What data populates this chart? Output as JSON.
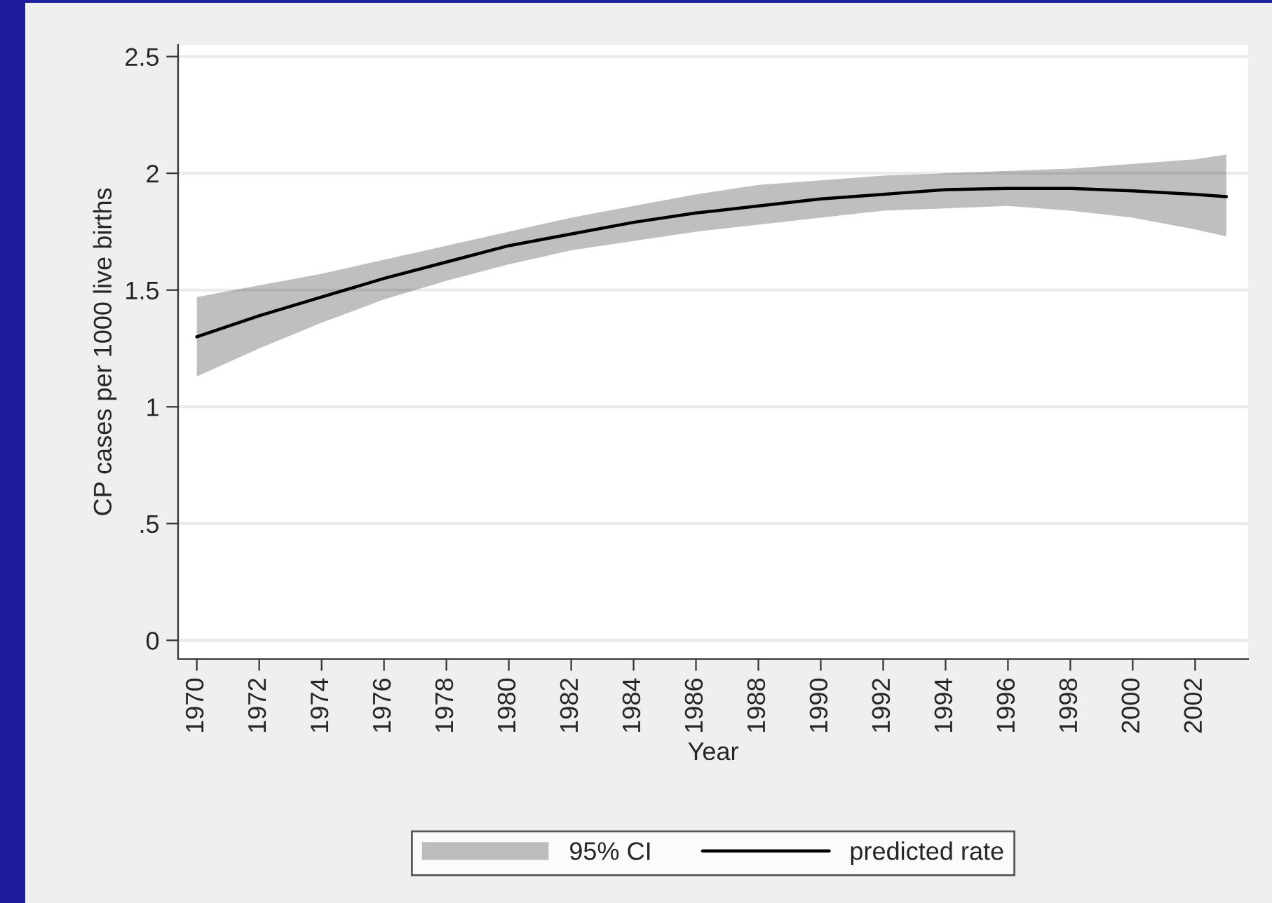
{
  "chart_data": {
    "type": "line",
    "xlabel": "Year",
    "ylabel": "CP cases per 1000 live births",
    "x": [
      1970,
      1972,
      1974,
      1976,
      1978,
      1980,
      1982,
      1984,
      1986,
      1988,
      1990,
      1992,
      1994,
      1996,
      1998,
      2000,
      2002,
      2003
    ],
    "series": [
      {
        "name": "predicted rate",
        "color": "#000000",
        "values": [
          1.3,
          1.39,
          1.47,
          1.55,
          1.62,
          1.69,
          1.74,
          1.79,
          1.83,
          1.86,
          1.89,
          1.91,
          1.93,
          1.935,
          1.935,
          1.925,
          1.91,
          1.9
        ],
        "upper": [
          1.47,
          1.52,
          1.57,
          1.63,
          1.69,
          1.75,
          1.81,
          1.86,
          1.91,
          1.95,
          1.97,
          1.99,
          2.0,
          2.01,
          2.02,
          2.04,
          2.06,
          2.08
        ],
        "lower": [
          1.13,
          1.25,
          1.36,
          1.46,
          1.54,
          1.61,
          1.67,
          1.71,
          1.75,
          1.78,
          1.81,
          1.84,
          1.85,
          1.86,
          1.84,
          1.81,
          1.76,
          1.73
        ]
      }
    ],
    "annotations": [
      "95% CI"
    ],
    "xlim": [
      1969.4,
      2003.7
    ],
    "xticks": [
      1970,
      1972,
      1974,
      1976,
      1978,
      1980,
      1982,
      1984,
      1986,
      1988,
      1990,
      1992,
      1994,
      1996,
      1998,
      2000,
      2002
    ],
    "ylim": [
      -0.08,
      2.55
    ],
    "yticks": [
      0,
      {
        "value": 0.5,
        "label": ".5"
      },
      1,
      1.5,
      2,
      2.5
    ],
    "grid": "y",
    "legend": "bottom",
    "line_style": "solid",
    "marker": "none"
  }
}
